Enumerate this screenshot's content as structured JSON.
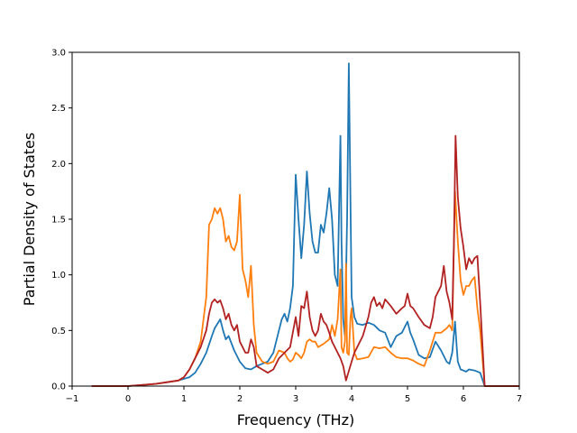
{
  "chart_data": {
    "type": "line",
    "title": "",
    "xlabel": "Frequency (THz)",
    "ylabel": "Partial Density of States",
    "xlim": [
      -1,
      7
    ],
    "ylim": [
      0,
      3.0
    ],
    "xticks": [
      -1,
      0,
      1,
      2,
      3,
      4,
      5,
      6,
      7
    ],
    "xtick_labels": [
      "−1",
      "0",
      "1",
      "2",
      "3",
      "4",
      "5",
      "6",
      "7"
    ],
    "yticks": [
      0,
      0.5,
      1.0,
      1.5,
      2.0,
      2.5,
      3.0
    ],
    "ytick_labels": [
      "0.0",
      "0.5",
      "1.0",
      "1.5",
      "2.0",
      "2.5",
      "3.0"
    ],
    "grid": false,
    "legend": "none",
    "series": [
      {
        "color": "#1f77b4",
        "x": [
          -0.65,
          0.0,
          0.5,
          0.9,
          1.1,
          1.2,
          1.3,
          1.4,
          1.5,
          1.55,
          1.6,
          1.65,
          1.7,
          1.75,
          1.8,
          1.9,
          2.0,
          2.1,
          2.2,
          2.3,
          2.4,
          2.5,
          2.6,
          2.7,
          2.75,
          2.8,
          2.85,
          2.9,
          2.95,
          3.0,
          3.05,
          3.1,
          3.15,
          3.2,
          3.25,
          3.3,
          3.35,
          3.4,
          3.45,
          3.5,
          3.55,
          3.6,
          3.65,
          3.7,
          3.75,
          3.8,
          3.82,
          3.85,
          3.88,
          3.92,
          3.95,
          3.97,
          4.0,
          4.05,
          4.1,
          4.2,
          4.3,
          4.4,
          4.5,
          4.6,
          4.7,
          4.8,
          4.9,
          5.0,
          5.05,
          5.1,
          5.2,
          5.3,
          5.4,
          5.5,
          5.6,
          5.7,
          5.75,
          5.8,
          5.85,
          5.88,
          5.9,
          5.95,
          6.0,
          6.05,
          6.1,
          6.2,
          6.3,
          6.38,
          6.5,
          7.0
        ],
        "y": [
          0.0,
          0.0,
          0.02,
          0.05,
          0.08,
          0.12,
          0.2,
          0.3,
          0.45,
          0.52,
          0.56,
          0.6,
          0.5,
          0.42,
          0.45,
          0.32,
          0.22,
          0.16,
          0.15,
          0.18,
          0.2,
          0.22,
          0.3,
          0.5,
          0.6,
          0.65,
          0.58,
          0.7,
          0.9,
          1.9,
          1.5,
          1.15,
          1.45,
          1.93,
          1.55,
          1.3,
          1.2,
          1.2,
          1.45,
          1.38,
          1.55,
          1.78,
          1.5,
          1.0,
          0.9,
          2.25,
          1.3,
          0.6,
          0.45,
          1.5,
          2.9,
          2.1,
          0.8,
          0.62,
          0.56,
          0.55,
          0.57,
          0.55,
          0.5,
          0.48,
          0.35,
          0.45,
          0.48,
          0.58,
          0.48,
          0.42,
          0.28,
          0.25,
          0.26,
          0.4,
          0.32,
          0.22,
          0.2,
          0.3,
          0.58,
          0.35,
          0.22,
          0.15,
          0.14,
          0.13,
          0.15,
          0.14,
          0.12,
          0.0,
          0.0,
          0.0
        ]
      },
      {
        "color": "#ff7f0e",
        "x": [
          -0.65,
          0.0,
          0.5,
          0.9,
          1.0,
          1.1,
          1.2,
          1.3,
          1.4,
          1.45,
          1.5,
          1.55,
          1.6,
          1.65,
          1.7,
          1.75,
          1.8,
          1.85,
          1.9,
          1.95,
          2.0,
          2.05,
          2.1,
          2.15,
          2.2,
          2.25,
          2.3,
          2.4,
          2.5,
          2.6,
          2.7,
          2.8,
          2.85,
          2.9,
          2.95,
          3.0,
          3.05,
          3.1,
          3.15,
          3.2,
          3.25,
          3.3,
          3.35,
          3.4,
          3.5,
          3.6,
          3.65,
          3.7,
          3.75,
          3.8,
          3.82,
          3.85,
          3.88,
          3.9,
          3.92,
          3.95,
          3.98,
          4.0,
          4.05,
          4.1,
          4.2,
          4.3,
          4.4,
          4.5,
          4.6,
          4.7,
          4.8,
          4.9,
          5.0,
          5.1,
          5.2,
          5.3,
          5.4,
          5.5,
          5.6,
          5.7,
          5.75,
          5.8,
          5.85,
          5.9,
          5.95,
          6.0,
          6.05,
          6.1,
          6.15,
          6.2,
          6.25,
          6.3,
          6.38,
          6.5,
          7.0
        ],
        "y": [
          0.0,
          0.0,
          0.02,
          0.05,
          0.08,
          0.15,
          0.25,
          0.4,
          0.8,
          1.45,
          1.5,
          1.6,
          1.55,
          1.6,
          1.5,
          1.3,
          1.35,
          1.25,
          1.22,
          1.3,
          1.72,
          1.05,
          0.95,
          0.8,
          1.08,
          0.55,
          0.3,
          0.22,
          0.2,
          0.22,
          0.32,
          0.3,
          0.25,
          0.22,
          0.24,
          0.3,
          0.28,
          0.25,
          0.3,
          0.4,
          0.42,
          0.4,
          0.4,
          0.35,
          0.38,
          0.42,
          0.55,
          0.45,
          0.6,
          1.05,
          0.35,
          0.3,
          0.4,
          1.1,
          0.3,
          0.28,
          0.62,
          0.7,
          0.3,
          0.24,
          0.25,
          0.26,
          0.35,
          0.34,
          0.35,
          0.3,
          0.26,
          0.25,
          0.25,
          0.23,
          0.2,
          0.18,
          0.32,
          0.48,
          0.48,
          0.52,
          0.55,
          0.5,
          1.75,
          1.3,
          0.95,
          0.82,
          0.9,
          0.9,
          0.95,
          0.98,
          0.7,
          0.5,
          0.0,
          0.0,
          0.0
        ]
      },
      {
        "color": "#b22222",
        "x": [
          -0.65,
          0.0,
          0.5,
          0.9,
          1.0,
          1.1,
          1.2,
          1.3,
          1.4,
          1.45,
          1.5,
          1.55,
          1.6,
          1.65,
          1.7,
          1.75,
          1.8,
          1.85,
          1.9,
          1.95,
          2.0,
          2.05,
          2.1,
          2.15,
          2.2,
          2.25,
          2.3,
          2.4,
          2.5,
          2.6,
          2.7,
          2.8,
          2.9,
          3.0,
          3.05,
          3.1,
          3.15,
          3.2,
          3.25,
          3.3,
          3.35,
          3.4,
          3.45,
          3.5,
          3.55,
          3.6,
          3.65,
          3.7,
          3.75,
          3.8,
          3.85,
          3.9,
          4.0,
          4.05,
          4.1,
          4.2,
          4.3,
          4.35,
          4.4,
          4.45,
          4.5,
          4.55,
          4.6,
          4.7,
          4.8,
          4.9,
          4.95,
          5.0,
          5.05,
          5.1,
          5.2,
          5.3,
          5.4,
          5.45,
          5.5,
          5.55,
          5.6,
          5.65,
          5.7,
          5.75,
          5.8,
          5.83,
          5.86,
          5.9,
          5.95,
          6.0,
          6.05,
          6.1,
          6.15,
          6.2,
          6.25,
          6.3,
          6.38,
          6.5,
          7.0
        ],
        "y": [
          0.0,
          0.0,
          0.02,
          0.05,
          0.08,
          0.15,
          0.25,
          0.35,
          0.5,
          0.65,
          0.75,
          0.78,
          0.75,
          0.77,
          0.7,
          0.6,
          0.65,
          0.55,
          0.5,
          0.55,
          0.4,
          0.35,
          0.3,
          0.3,
          0.42,
          0.35,
          0.18,
          0.15,
          0.12,
          0.15,
          0.25,
          0.3,
          0.35,
          0.62,
          0.45,
          0.72,
          0.7,
          0.85,
          0.62,
          0.5,
          0.45,
          0.5,
          0.65,
          0.58,
          0.55,
          0.48,
          0.4,
          0.35,
          0.3,
          0.25,
          0.18,
          0.05,
          0.22,
          0.3,
          0.35,
          0.45,
          0.62,
          0.75,
          0.8,
          0.72,
          0.75,
          0.7,
          0.78,
          0.72,
          0.65,
          0.7,
          0.72,
          0.83,
          0.72,
          0.7,
          0.62,
          0.55,
          0.52,
          0.62,
          0.8,
          0.85,
          0.9,
          1.08,
          0.85,
          0.75,
          0.6,
          1.3,
          2.25,
          1.7,
          1.42,
          1.25,
          1.05,
          1.15,
          1.1,
          1.15,
          1.17,
          0.75,
          0.0,
          0.0,
          0.0
        ]
      }
    ]
  }
}
